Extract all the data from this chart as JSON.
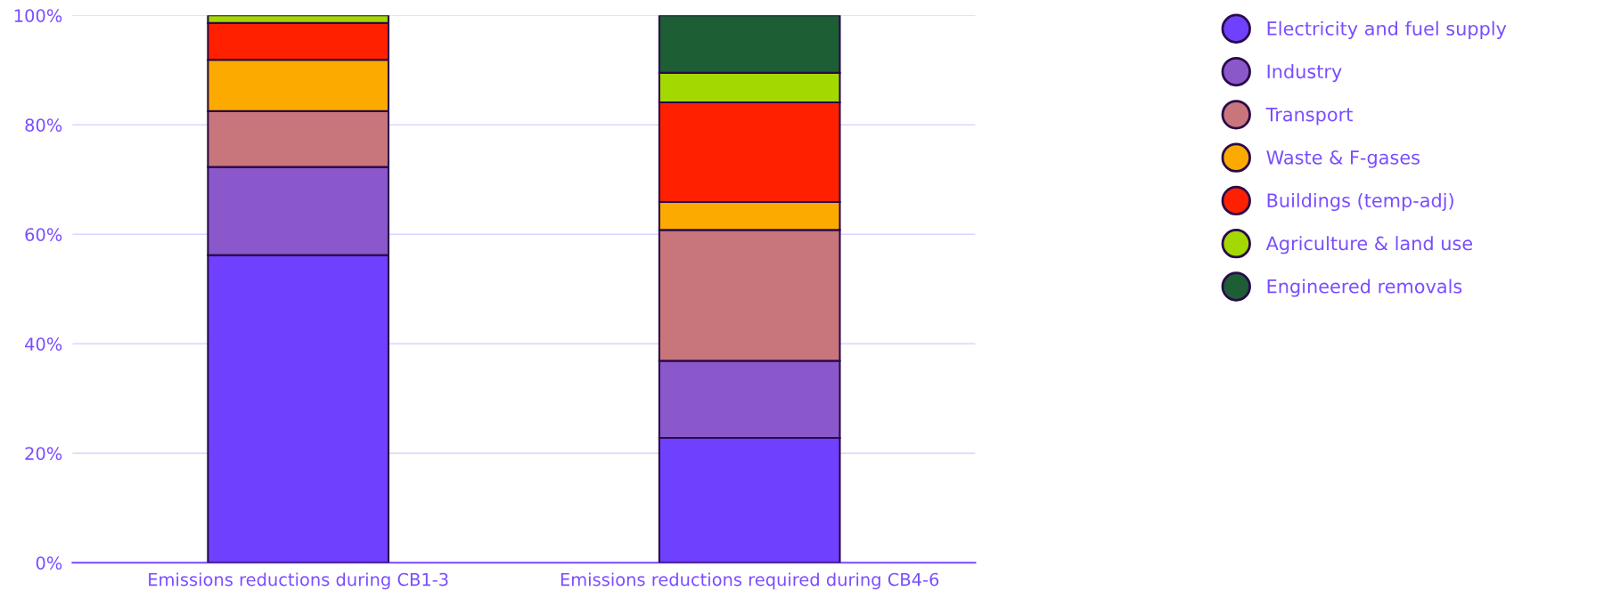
{
  "chart_data": {
    "type": "bar",
    "stacked": true,
    "categories": [
      "Emissions reductions during CB1-3",
      "Emissions reductions required during CB4-6"
    ],
    "series": [
      {
        "name": "Electricity and fuel supply",
        "color": "#7040ff",
        "values": [
          56.2,
          22.8
        ]
      },
      {
        "name": "Industry",
        "color": "#8b58cc",
        "values": [
          16.1,
          14.1
        ]
      },
      {
        "name": "Transport",
        "color": "#c8767c",
        "values": [
          10.2,
          23.9
        ]
      },
      {
        "name": "Waste & F-gases",
        "color": "#fdaa00",
        "values": [
          9.4,
          5.1
        ]
      },
      {
        "name": "Buildings (temp-adj)",
        "color": "#ff2000",
        "values": [
          6.7,
          18.2
        ]
      },
      {
        "name": "Agriculture & land use",
        "color": "#a3d900",
        "values": [
          1.4,
          5.4
        ]
      },
      {
        "name": "Engineered removals",
        "color": "#1d5e35",
        "values": [
          null,
          10.5
        ]
      }
    ],
    "ylim": [
      0,
      100
    ],
    "yticks": [
      {
        "value": 0,
        "label": "0%"
      },
      {
        "value": 20,
        "label": "20%"
      },
      {
        "value": 40,
        "label": "40%"
      },
      {
        "value": 60,
        "label": "60%"
      },
      {
        "value": 80,
        "label": "80%"
      },
      {
        "value": 100,
        "label": "100%"
      }
    ],
    "grid": "y",
    "legend": "right"
  }
}
